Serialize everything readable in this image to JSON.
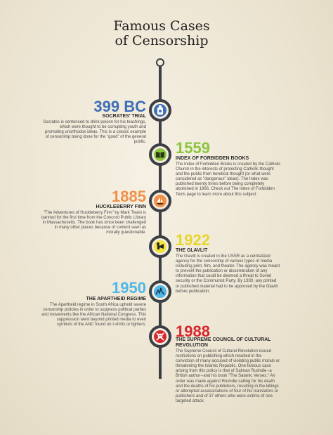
{
  "title": {
    "line1": "Famous Cases",
    "line2": "of Censorship"
  },
  "events": [
    {
      "year": "399 BC",
      "heading": "SOCRATES' TRIAL",
      "text": "Socrates is sentenced to drink poison for his teachings, which were thought to be corrupting youth and promoting unorthodox ideas. This is a classic example of censorship being done for the \"good\" of the general public.",
      "icon": "poison-bottle-icon",
      "color": "#3f6fb6"
    },
    {
      "year": "1559",
      "heading": "INDEX OF FORBIDDEN BOOKS",
      "text": "The Index of Forbidden Books is created by the Catholic Church in the interests of protecting Catholic thought and the public from heretical thought (or what were considered as \"dangerous\" ideas). The Index was published twenty times before being completely abolished in 1966. Check out The Index of Forbidden Texts page to learn more about this subject.",
      "icon": "book-icon",
      "color": "#8cc63f"
    },
    {
      "year": "1885",
      "heading": "HUCKLEBERRY FINN",
      "text": "\"The Adventures of Huckleberry Finn\" by Mark Twain is banned for the first time from the Concord Public Library in Massachusetts. The book has since been challenged in many other places because of content seen as morally questionable.",
      "icon": "sailboat-icon",
      "color": "#f0914a"
    },
    {
      "year": "1922",
      "heading": "THE GLAVLIT",
      "text": "The Glavlit is created in the USSR as a centralized agency for the censorship of various types of media including print, film, and theater. The agency was meant to prevent the publication or dissemination of any information that could be deemed a threat to Soviet security or the Communist Party. By 1930, any printed or published material had to be approved by the Glavlit before publication.",
      "icon": "megaphone-icon",
      "color": "#f2e43a"
    },
    {
      "year": "1950",
      "heading": "THE APARTHEID REGIME",
      "text": "The Apartheid regime in South Africa upheld severe censorship policies in order to suppress political parties and movements like the African National Congress. This suppression went beyond printed media to even symbols of the ANC found on t-shirts or lighters.",
      "icon": "broken-barrier-icon",
      "color": "#4fb8e6"
    },
    {
      "year": "1988",
      "heading": "THE SUPREME COUNCIL OF CULTURAL REVOLUTION",
      "heading2": "CULTURAL REVOLUTION",
      "text": "The Supreme Council of Cultural Revolution issued restrictions on publishing which resulted in the conviction of many accused of violating public morals or threatening the Islamic Republic. One famous case arising from this policy is that of Salman Rushdie--a British author--and his book \"The Satanic Verses.\" An order was made against Rushdie calling for his death and the deaths of his publishers, resulting in the killings or attempted assassinations of four of his translators or publishers and of 37 others who were victims of one targeted attack.",
      "icon": "skull-crossbones-icon",
      "color": "#d9262c"
    }
  ]
}
